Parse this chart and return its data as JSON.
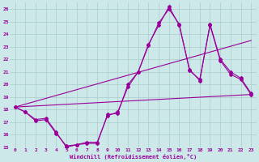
{
  "xlabel": "Windchill (Refroidissement éolien,°C)",
  "xlim": [
    -0.5,
    23.5
  ],
  "ylim": [
    15,
    26.5
  ],
  "yticks": [
    15,
    16,
    17,
    18,
    19,
    20,
    21,
    22,
    23,
    24,
    25,
    26
  ],
  "xticks": [
    0,
    1,
    2,
    3,
    4,
    5,
    6,
    7,
    8,
    9,
    10,
    11,
    12,
    13,
    14,
    15,
    16,
    17,
    18,
    19,
    20,
    21,
    22,
    23
  ],
  "bg_color": "#cce8e8",
  "line_color": "#990099",
  "grid_color": "#aacccc",
  "line1_x": [
    0,
    1,
    2,
    3,
    4,
    5,
    6,
    7,
    8,
    9,
    10,
    11,
    12,
    13,
    14,
    15,
    16,
    17,
    18,
    19,
    20,
    21,
    22,
    23
  ],
  "line1_y": [
    18.2,
    17.8,
    17.2,
    17.3,
    16.2,
    15.0,
    15.2,
    15.3,
    15.3,
    17.6,
    17.7,
    20.0,
    21.0,
    23.2,
    24.7,
    26.2,
    24.7,
    21.2,
    20.3,
    24.8,
    22.0,
    21.0,
    20.5,
    19.3
  ],
  "line2_x": [
    0,
    1,
    2,
    3,
    4,
    5,
    6,
    7,
    8,
    9,
    10,
    11,
    12,
    13,
    14,
    15,
    16,
    17,
    18,
    19,
    20,
    21,
    22,
    23
  ],
  "line2_y": [
    18.2,
    17.8,
    17.1,
    17.2,
    16.1,
    15.1,
    15.2,
    15.4,
    15.4,
    17.5,
    17.8,
    19.8,
    21.0,
    23.1,
    24.9,
    26.0,
    24.8,
    21.1,
    20.4,
    24.7,
    21.9,
    20.8,
    20.4,
    19.2
  ],
  "line3_x": [
    0,
    23
  ],
  "line3_y": [
    18.2,
    23.5
  ],
  "line4_x": [
    0,
    23
  ],
  "line4_y": [
    18.2,
    19.2
  ]
}
